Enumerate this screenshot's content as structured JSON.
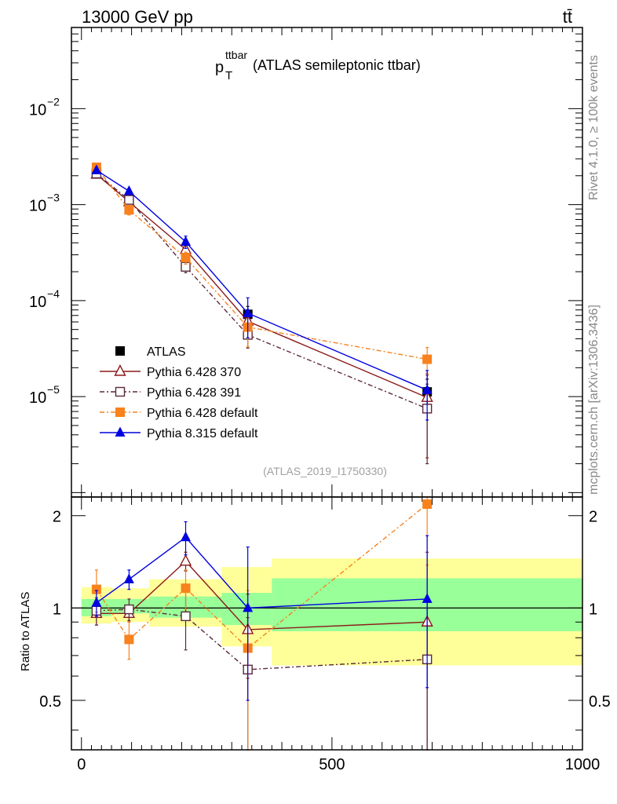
{
  "header": {
    "energy_label": "13000 GeV pp",
    "process_label": "tt̄"
  },
  "side_labels": {
    "rivet": "Rivet 4.1.0, ≥ 100k events",
    "mcplots": "mcplots.cern.ch [arXiv:1306.3436]"
  },
  "chart_data": [
    {
      "type": "line",
      "panel": "main",
      "title_main": "p",
      "title_sub": "T",
      "title_sup": "ttbar",
      "title_rest": " (ATLAS semileptonic ttbar)",
      "analysis_id": "(ATLAS_2019_I1750330)",
      "yscale": "log",
      "xlim": [
        -20,
        1000
      ],
      "ylim": [
        9e-07,
        0.07
      ],
      "ytick_labels": [
        {
          "label": "10",
          "exp": "−2",
          "value": 0.01
        },
        {
          "label": "10",
          "exp": "−3",
          "value": 0.001
        },
        {
          "label": "10",
          "exp": "−4",
          "value": 0.0001
        },
        {
          "label": "10",
          "exp": "−5",
          "value": 1e-05
        }
      ],
      "x": [
        30,
        95,
        208,
        332,
        690
      ],
      "series": [
        {
          "name": "ATLAS",
          "color": "#000000",
          "marker": "square-filled",
          "values": [
            0.00215,
            0.00112,
            0.00024,
            7.2e-05,
            1.12e-05
          ],
          "err_lo": [
            0.0002,
            0.0001,
            3e-05,
            1.5e-05,
            4e-06
          ],
          "err_hi": [
            0.0002,
            0.0001,
            3e-05,
            1.5e-05,
            4e-06
          ]
        },
        {
          "name": "Pythia 6.428 370",
          "color": "#8b1a1a",
          "marker": "triangle-open",
          "dash": "",
          "values": [
            0.00207,
            0.00107,
            0.00034,
            6.1e-05,
            9.8e-06
          ],
          "err_lo": [
            0.0001,
            7e-05,
            3e-05,
            1.8e-05,
            7.5e-06
          ],
          "err_hi": [
            0.0001,
            7e-05,
            3e-05,
            1.8e-05,
            7e-06
          ]
        },
        {
          "name": "Pythia 6.428 391",
          "color": "#5b2a3a",
          "marker": "square-open",
          "dash": "6,3,2,3",
          "values": [
            0.00211,
            0.00112,
            0.000225,
            4.4e-05,
            7.5e-06
          ],
          "err_lo": [
            0.0001,
            7e-05,
            3e-05,
            1.2e-05,
            5.5e-06
          ],
          "err_hi": [
            0.0001,
            7e-05,
            3e-05,
            1.2e-05,
            6e-06
          ]
        },
        {
          "name": "Pythia 6.428 default",
          "color": "#f7821e",
          "marker": "square-filled",
          "dash": "6,3,2,3",
          "values": [
            0.00245,
            0.00088,
            0.00028,
            5.3e-05,
            2.45e-05
          ],
          "err_lo": [
            0.0002,
            0.0001,
            4e-05,
            2e-05,
            7e-06
          ],
          "err_hi": [
            0.0002,
            0.0001,
            4e-05,
            2e-05,
            8e-06
          ]
        },
        {
          "name": "Pythia 8.315 default",
          "color": "#0000e0",
          "marker": "triangle-filled",
          "dash": "",
          "values": [
            0.00228,
            0.00138,
            0.00041,
            7.4e-05,
            1.17e-05
          ],
          "err_lo": [
            0.00015,
            0.0001,
            6e-05,
            3.3e-05,
            6e-06
          ],
          "err_hi": [
            0.00015,
            0.0001,
            6e-05,
            3.3e-05,
            7e-06
          ]
        }
      ]
    },
    {
      "type": "line",
      "panel": "ratio",
      "ylabel": "Ratio to ATLAS",
      "xlim": [
        -20,
        1000
      ],
      "ylim": [
        0.345,
        2.3
      ],
      "yticks": [
        0.5,
        1,
        2
      ],
      "ytick_labels": [
        "0.5",
        "1",
        "2"
      ],
      "xticks": [
        0,
        500,
        1000
      ],
      "xtick_labels": [
        "0",
        "500",
        "1000"
      ],
      "bins": [
        0,
        60,
        135,
        280,
        380,
        1000
      ],
      "band_inner": [
        [
          0.94,
          1.07
        ],
        [
          0.96,
          1.07
        ],
        [
          0.93,
          1.09
        ],
        [
          0.88,
          1.12
        ],
        [
          0.84,
          1.25
        ]
      ],
      "band_outer": [
        [
          0.89,
          1.17
        ],
        [
          0.9,
          1.16
        ],
        [
          0.87,
          1.24
        ],
        [
          0.75,
          1.36
        ],
        [
          0.65,
          1.45
        ]
      ],
      "x": [
        30,
        95,
        208,
        332,
        690
      ],
      "series": [
        {
          "name": "Pythia 6.428 370",
          "color": "#8b1a1a",
          "marker": "triangle-open",
          "dash": "",
          "values": [
            0.96,
            0.96,
            1.42,
            0.85,
            0.9
          ],
          "err_lo": [
            0.08,
            0.06,
            0.1,
            0.26,
            0.62
          ],
          "err_hi": [
            0.08,
            0.06,
            0.1,
            0.26,
            0.62
          ]
        },
        {
          "name": "Pythia 6.428 391",
          "color": "#5b2a3a",
          "marker": "square-open",
          "dash": "6,3,2,3",
          "values": [
            0.98,
            0.99,
            0.94,
            0.63,
            0.68
          ],
          "err_lo": [
            0.1,
            0.08,
            0.21,
            0.3,
            0.4
          ],
          "err_hi": [
            0.1,
            0.08,
            0.21,
            0.3,
            0.4
          ]
        },
        {
          "name": "Pythia 6.428 default",
          "color": "#f7821e",
          "marker": "square-filled",
          "dash": "6,3,2,3",
          "values": [
            1.15,
            0.79,
            1.16,
            0.74,
            2.18
          ],
          "err_lo": [
            0.18,
            0.11,
            0.17,
            0.4,
            0.8
          ],
          "err_hi": [
            0.18,
            0.11,
            0.17,
            0.4,
            0.5
          ]
        },
        {
          "name": "Pythia 8.315 default",
          "color": "#0000e0",
          "marker": "triangle-filled",
          "dash": "",
          "values": [
            1.04,
            1.24,
            1.7,
            1.0,
            1.07
          ],
          "err_lo": [
            0.1,
            0.09,
            0.21,
            0.5,
            0.52
          ],
          "err_hi": [
            0.1,
            0.09,
            0.21,
            0.58,
            0.65
          ]
        }
      ]
    }
  ]
}
